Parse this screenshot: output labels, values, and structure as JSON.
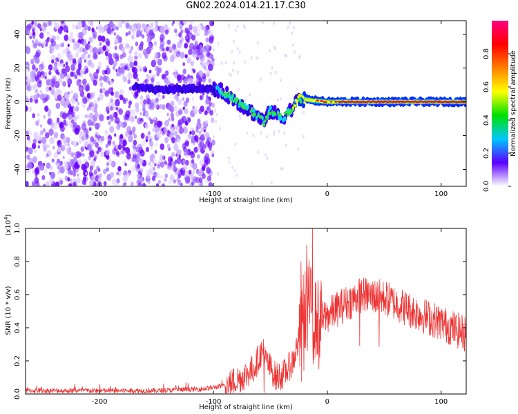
{
  "title": "GN02.2024.014.21.17.C30",
  "chart_data": [
    {
      "type": "heatmap",
      "xlabel": "Height of straight line (km)",
      "ylabel": "Frequency (Hz)",
      "xlim": [
        -265,
        122
      ],
      "ylim": [
        -50,
        48
      ],
      "x_ticks": [
        -200,
        -100,
        0,
        100
      ],
      "y_ticks": [
        -40,
        -20,
        0,
        20,
        40
      ],
      "grid": false,
      "signal_path": [
        {
          "x": -170,
          "y": 9
        },
        {
          "x": -150,
          "y": 7
        },
        {
          "x": -110,
          "y": 8
        },
        {
          "x": -95,
          "y": 7
        },
        {
          "x": -85,
          "y": 3
        },
        {
          "x": -75,
          "y": -2
        },
        {
          "x": -62,
          "y": -8
        },
        {
          "x": -55,
          "y": -12
        },
        {
          "x": -50,
          "y": -5
        },
        {
          "x": -40,
          "y": -10
        },
        {
          "x": -30,
          "y": -3
        },
        {
          "x": -25,
          "y": 2
        },
        {
          "x": -15,
          "y": 1
        },
        {
          "x": 0,
          "y": 0
        },
        {
          "x": 50,
          "y": 0
        },
        {
          "x": 100,
          "y": 0
        },
        {
          "x": 122,
          "y": 0
        }
      ],
      "noise_region_x": [
        -265,
        -100
      ],
      "colorbar": {
        "label": "Normalized spectral amplitude",
        "range": [
          0.0,
          1.0
        ],
        "ticks": [
          "0.0",
          "0.2",
          "0.4",
          "0.6",
          "0.8"
        ],
        "colors": [
          "#ffffff",
          "#5b00ff",
          "#00c8ff",
          "#00e000",
          "#ffff00",
          "#ff8000",
          "#ff0000",
          "#ff0080"
        ]
      }
    },
    {
      "type": "line",
      "xlabel": "Height of straight line (km)",
      "ylabel": "SNR (10 * v/v)",
      "scale_label": "(x10",
      "scale_exponent": "4",
      "scale_close": ")",
      "xlim": [
        -265,
        122
      ],
      "ylim": [
        0,
        1.0
      ],
      "x_ticks": [
        -200,
        -100,
        0,
        100
      ],
      "y_ticks": [
        "0.0",
        "0.2",
        "0.4",
        "0.6",
        "0.8",
        "1.0"
      ],
      "color": "#ee3333",
      "series": [
        {
          "envelope": [
            {
              "x": -265,
              "y": 0.02
            },
            {
              "x": -200,
              "y": 0.02
            },
            {
              "x": -150,
              "y": 0.02
            },
            {
              "x": -110,
              "y": 0.03
            },
            {
              "x": -90,
              "y": 0.05
            },
            {
              "x": -75,
              "y": 0.1
            },
            {
              "x": -65,
              "y": 0.15
            },
            {
              "x": -58,
              "y": 0.25
            },
            {
              "x": -52,
              "y": 0.18
            },
            {
              "x": -45,
              "y": 0.1
            },
            {
              "x": -38,
              "y": 0.12
            },
            {
              "x": -30,
              "y": 0.2
            },
            {
              "x": -22,
              "y": 0.4
            },
            {
              "x": -17,
              "y": 0.6
            },
            {
              "x": -12,
              "y": 0.45
            },
            {
              "x": -5,
              "y": 0.45
            },
            {
              "x": 10,
              "y": 0.52
            },
            {
              "x": 30,
              "y": 0.6
            },
            {
              "x": 50,
              "y": 0.58
            },
            {
              "x": 75,
              "y": 0.5
            },
            {
              "x": 100,
              "y": 0.43
            },
            {
              "x": 122,
              "y": 0.36
            }
          ],
          "spikes": [
            {
              "x": -56,
              "y": 0.33
            },
            {
              "x": -23,
              "y": 0.8
            },
            {
              "x": -21,
              "y": 0.72
            },
            {
              "x": -18,
              "y": 0.9
            },
            {
              "x": -13,
              "y": 1.0
            },
            {
              "x": -8,
              "y": 0.6
            },
            {
              "x": 28,
              "y": 0.68
            },
            {
              "x": 45,
              "y": 0.66
            }
          ]
        }
      ]
    }
  ]
}
